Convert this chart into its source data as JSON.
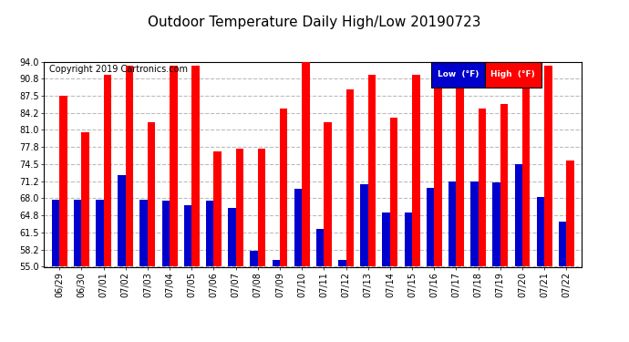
{
  "title": "Outdoor Temperature Daily High/Low 20190723",
  "copyright": "Copyright 2019 Cartronics.com",
  "legend_low": "Low  (°F)",
  "legend_high": "High  (°F)",
  "dates": [
    "06/29",
    "06/30",
    "07/01",
    "07/02",
    "07/03",
    "07/04",
    "07/05",
    "07/06",
    "07/07",
    "07/08",
    "07/09",
    "07/10",
    "07/11",
    "07/12",
    "07/13",
    "07/14",
    "07/15",
    "07/16",
    "07/17",
    "07/18",
    "07/19",
    "07/20",
    "07/21",
    "07/22"
  ],
  "highs": [
    87.5,
    80.6,
    91.4,
    93.2,
    82.4,
    93.2,
    93.2,
    77.0,
    77.5,
    77.5,
    85.1,
    94.1,
    82.4,
    88.7,
    91.4,
    83.3,
    91.4,
    90.5,
    89.6,
    85.1,
    86.0,
    93.2,
    93.2,
    75.2
  ],
  "lows": [
    67.8,
    67.8,
    67.8,
    72.5,
    67.8,
    67.5,
    66.7,
    67.5,
    66.2,
    58.1,
    56.3,
    69.8,
    62.2,
    56.3,
    70.7,
    65.3,
    65.3,
    70.0,
    71.2,
    71.2,
    71.0,
    74.5,
    68.2,
    63.5
  ],
  "ylim": [
    55.0,
    94.0
  ],
  "yticks": [
    55.0,
    58.2,
    61.5,
    64.8,
    68.0,
    71.2,
    74.5,
    77.8,
    81.0,
    84.2,
    87.5,
    90.8,
    94.0
  ],
  "bar_color_low": "#0000cc",
  "bar_color_high": "#ff0000",
  "bg_color": "#ffffff",
  "grid_color": "#bbbbbb",
  "title_fontsize": 11,
  "copyright_fontsize": 7,
  "legend_bg_low": "#0000cc",
  "legend_bg_high": "#ff0000",
  "legend_text_color": "#ffffff"
}
